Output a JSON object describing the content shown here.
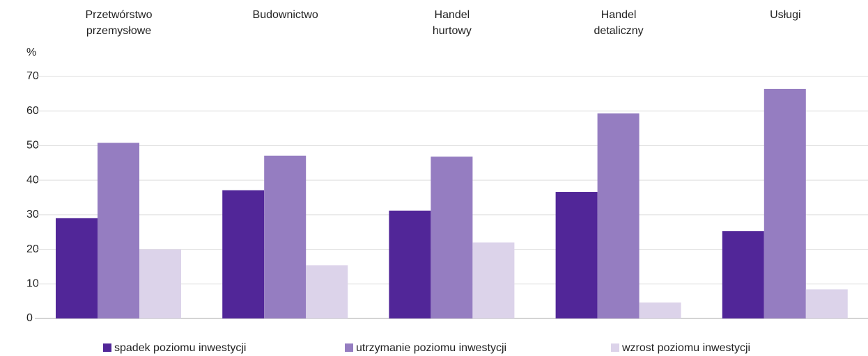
{
  "chart_data": {
    "type": "bar",
    "y_label": "%",
    "categories": [
      "Przetwórstwo\nprzemysłowe",
      "Budownictwo",
      "Handel\nhurtowy",
      "Handel\ndetaliczny",
      "Usługi"
    ],
    "series": [
      {
        "name": "spadek poziomu inwestycji",
        "color": "#512698",
        "values": [
          29,
          37.1,
          31.2,
          36.6,
          25.3
        ]
      },
      {
        "name": "utrzymanie poziomu inwestycji",
        "color": "#957dc1",
        "values": [
          50.8,
          47.1,
          46.8,
          59.3,
          66.4
        ]
      },
      {
        "name": "wzrost poziomu inwestycji",
        "color": "#dcd3ea",
        "values": [
          20,
          15.4,
          22,
          4.6,
          8.4
        ]
      }
    ],
    "ylim": [
      0,
      70
    ],
    "yticks": [
      0,
      10,
      20,
      30,
      40,
      50,
      60,
      70
    ],
    "grid": true,
    "legend": "bottom"
  }
}
